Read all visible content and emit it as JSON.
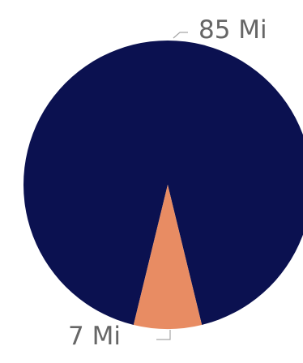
{
  "chart_data": {
    "type": "pie",
    "slices": [
      {
        "label": "85 Mi",
        "value": 85,
        "color": "#0b1150"
      },
      {
        "label": "7 Mi",
        "value": 7,
        "color": "#e88c63"
      }
    ],
    "title": "",
    "legend": "none"
  }
}
